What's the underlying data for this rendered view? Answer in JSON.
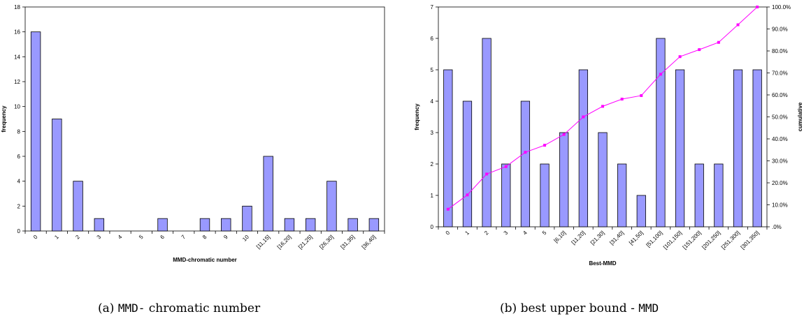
{
  "figures": [
    {
      "caption": {
        "prefix": "(a) ",
        "mono": "MMD-",
        "rest": " chromatic number"
      },
      "chart_data": {
        "type": "bar",
        "xlabel": "MMD-chromatic number",
        "ylabel": "frequency",
        "ylim": [
          0,
          18
        ],
        "yticks": [
          "0",
          "2",
          "4",
          "6",
          "8",
          "10",
          "12",
          "14",
          "16",
          "18"
        ],
        "categories": [
          "0",
          "1",
          "2",
          "3",
          "4",
          "5",
          "6",
          "7",
          "8",
          "9",
          "10",
          "[11,15]",
          "[16,20]",
          "[21,25]",
          "[26,30]",
          "[31,35]",
          "[36,40]"
        ],
        "series": [
          {
            "values": [
              16,
              9,
              4,
              1,
              0,
              0,
              1,
              0,
              1,
              1,
              2,
              6,
              1,
              1,
              4,
              1,
              1
            ]
          }
        ],
        "grid": false,
        "colors": {
          "bar": "#9999ff",
          "bar_edge": "#000000"
        }
      }
    },
    {
      "caption": {
        "prefix": "(b) ",
        "plain": "best upper bound - ",
        "mono": "MMD"
      },
      "chart_data": {
        "type": "bar",
        "xlabel": "Best-MMD",
        "ylabel": "frequency",
        "y2label": "cumulative",
        "ylim": [
          0,
          7
        ],
        "yticks": [
          "0",
          "1",
          "2",
          "3",
          "4",
          "5",
          "6",
          "7"
        ],
        "y2lim": [
          0,
          100
        ],
        "y2ticks": [
          ".0%",
          "10.0%",
          "20.0%",
          "30.0%",
          "40.0%",
          "50.0%",
          "60.0%",
          "70.0%",
          "80.0%",
          "90.0%",
          "100.0%"
        ],
        "categories": [
          "0",
          "1",
          "2",
          "3",
          "4",
          "5",
          "[6,10]",
          "[11,20]",
          "[21,30]",
          "[31,40]",
          "[41,50]",
          "[51,100]",
          "[101,150]",
          "[151,200]",
          "[201,250]",
          "[251,300]",
          "[301,350]"
        ],
        "series": [
          {
            "values": [
              5,
              4,
              6,
              2,
              4,
              2,
              3,
              5,
              3,
              2,
              1,
              6,
              5,
              2,
              2,
              5,
              5
            ]
          },
          {
            "type": "line",
            "axis": "right",
            "values": [
              8.0,
              14.5,
              24.0,
              27.4,
              33.9,
              37.1,
              42.0,
              50.0,
              54.8,
              58.1,
              59.7,
              69.4,
              77.4,
              80.6,
              83.9,
              91.9,
              100.0
            ]
          }
        ],
        "grid": false,
        "colors": {
          "bar": "#9999ff",
          "bar_edge": "#000000",
          "line": "#ff00ff"
        }
      }
    }
  ]
}
